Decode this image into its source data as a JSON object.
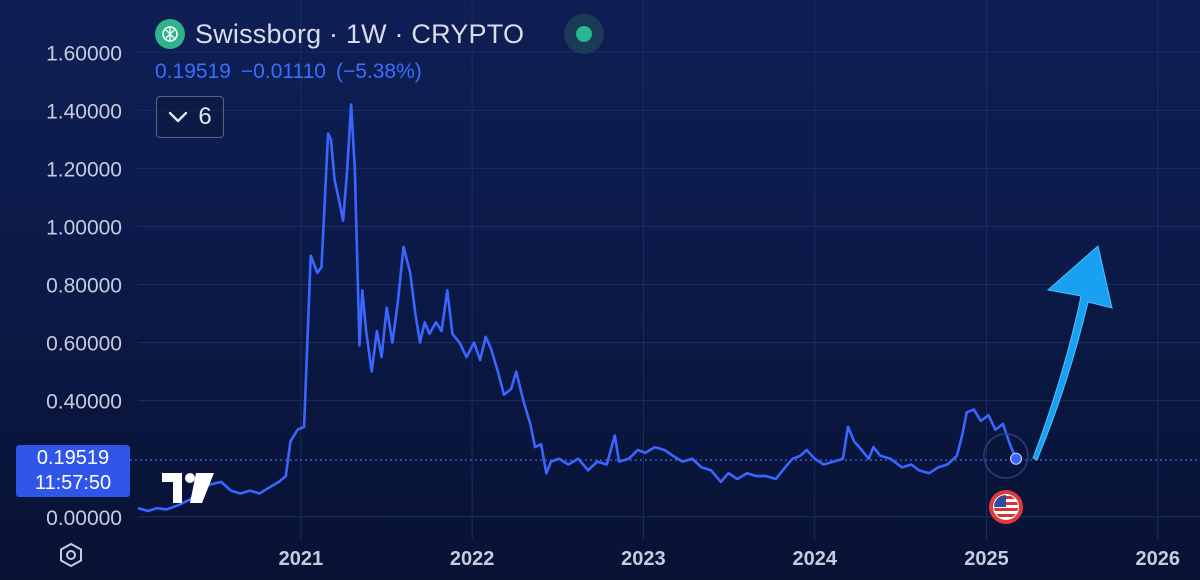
{
  "header": {
    "symbol": "Swissborg",
    "interval": "1W",
    "market": "CRYPTO",
    "title": "Swissborg · 1W · CRYPTO",
    "logo_icon": "swissborg-logo-icon",
    "status_icon": "market-status-dot-icon"
  },
  "quote": {
    "last": "0.19519",
    "change": "−0.01110",
    "change_pct": "(−5.38%)"
  },
  "indicators_button": {
    "label": "6",
    "icon": "chevron-down-icon"
  },
  "price_tag": {
    "price": "0.19519",
    "countdown": "11:57:50"
  },
  "colors": {
    "line": "#3a66ff",
    "accent": "#2f56e8",
    "arrow": "#1aa0f0",
    "logo": "#2fb38a"
  },
  "chart_data": {
    "type": "line",
    "y_ticks": [
      "1.60000",
      "1.40000",
      "1.20000",
      "1.00000",
      "0.80000",
      "0.60000",
      "0.40000",
      "0.00000"
    ],
    "y_tick_values": [
      1.6,
      1.4,
      1.2,
      1.0,
      0.8,
      0.6,
      0.4,
      0.0
    ],
    "x_ticks": [
      "2021",
      "2022",
      "2023",
      "2024",
      "2025",
      "2026"
    ],
    "xlim": [
      "2020-01-20",
      "2026-04-01"
    ],
    "ylim": [
      -0.08,
      1.78
    ],
    "grid": true,
    "series": [
      {
        "color": "#3a66ff",
        "points": [
          [
            "2020-01-20",
            0.03
          ],
          [
            "2020-02-10",
            0.02
          ],
          [
            "2020-03-01",
            0.03
          ],
          [
            "2020-03-20",
            0.025
          ],
          [
            "2020-04-15",
            0.04
          ],
          [
            "2020-05-10",
            0.06
          ],
          [
            "2020-06-01",
            0.09
          ],
          [
            "2020-06-20",
            0.11
          ],
          [
            "2020-07-15",
            0.12
          ],
          [
            "2020-08-05",
            0.09
          ],
          [
            "2020-08-25",
            0.08
          ],
          [
            "2020-09-15",
            0.09
          ],
          [
            "2020-10-05",
            0.08
          ],
          [
            "2020-10-25",
            0.1
          ],
          [
            "2020-11-15",
            0.12
          ],
          [
            "2020-11-30",
            0.14
          ],
          [
            "2020-12-10",
            0.26
          ],
          [
            "2020-12-25",
            0.3
          ],
          [
            "2021-01-08",
            0.31
          ],
          [
            "2021-01-22",
            0.9
          ],
          [
            "2021-02-05",
            0.84
          ],
          [
            "2021-02-14",
            0.86
          ],
          [
            "2021-02-28",
            1.32
          ],
          [
            "2021-03-06",
            1.3
          ],
          [
            "2021-03-14",
            1.16
          ],
          [
            "2021-03-22",
            1.1
          ],
          [
            "2021-04-01",
            1.02
          ],
          [
            "2021-04-10",
            1.2
          ],
          [
            "2021-04-18",
            1.42
          ],
          [
            "2021-04-26",
            1.2
          ],
          [
            "2021-05-06",
            0.59
          ],
          [
            "2021-05-12",
            0.78
          ],
          [
            "2021-05-20",
            0.64
          ],
          [
            "2021-06-01",
            0.5
          ],
          [
            "2021-06-12",
            0.64
          ],
          [
            "2021-06-22",
            0.55
          ],
          [
            "2021-07-03",
            0.72
          ],
          [
            "2021-07-15",
            0.6
          ],
          [
            "2021-07-26",
            0.73
          ],
          [
            "2021-08-08",
            0.93
          ],
          [
            "2021-08-22",
            0.84
          ],
          [
            "2021-09-02",
            0.7
          ],
          [
            "2021-09-12",
            0.6
          ],
          [
            "2021-09-22",
            0.67
          ],
          [
            "2021-10-02",
            0.63
          ],
          [
            "2021-10-16",
            0.67
          ],
          [
            "2021-10-28",
            0.64
          ],
          [
            "2021-11-09",
            0.78
          ],
          [
            "2021-11-20",
            0.63
          ],
          [
            "2021-12-05",
            0.6
          ],
          [
            "2021-12-20",
            0.55
          ],
          [
            "2022-01-05",
            0.6
          ],
          [
            "2022-01-18",
            0.54
          ],
          [
            "2022-01-30",
            0.62
          ],
          [
            "2022-02-10",
            0.58
          ],
          [
            "2022-02-25",
            0.5
          ],
          [
            "2022-03-10",
            0.42
          ],
          [
            "2022-03-25",
            0.44
          ],
          [
            "2022-04-05",
            0.5
          ],
          [
            "2022-04-20",
            0.4
          ],
          [
            "2022-05-05",
            0.32
          ],
          [
            "2022-05-15",
            0.24
          ],
          [
            "2022-05-28",
            0.25
          ],
          [
            "2022-06-08",
            0.15
          ],
          [
            "2022-06-18",
            0.19
          ],
          [
            "2022-07-05",
            0.2
          ],
          [
            "2022-07-25",
            0.18
          ],
          [
            "2022-08-15",
            0.2
          ],
          [
            "2022-09-05",
            0.16
          ],
          [
            "2022-09-25",
            0.19
          ],
          [
            "2022-10-15",
            0.18
          ],
          [
            "2022-11-01",
            0.28
          ],
          [
            "2022-11-10",
            0.19
          ],
          [
            "2022-12-01",
            0.2
          ],
          [
            "2022-12-20",
            0.23
          ],
          [
            "2023-01-05",
            0.22
          ],
          [
            "2023-01-25",
            0.24
          ],
          [
            "2023-02-15",
            0.23
          ],
          [
            "2023-03-05",
            0.21
          ],
          [
            "2023-03-25",
            0.19
          ],
          [
            "2023-04-15",
            0.2
          ],
          [
            "2023-05-05",
            0.17
          ],
          [
            "2023-05-25",
            0.16
          ],
          [
            "2023-06-15",
            0.12
          ],
          [
            "2023-07-01",
            0.15
          ],
          [
            "2023-07-20",
            0.13
          ],
          [
            "2023-08-10",
            0.15
          ],
          [
            "2023-08-30",
            0.14
          ],
          [
            "2023-09-20",
            0.14
          ],
          [
            "2023-10-10",
            0.13
          ],
          [
            "2023-10-30",
            0.17
          ],
          [
            "2023-11-15",
            0.2
          ],
          [
            "2023-12-01",
            0.21
          ],
          [
            "2023-12-15",
            0.23
          ],
          [
            "2024-01-01",
            0.2
          ],
          [
            "2024-01-20",
            0.18
          ],
          [
            "2024-02-10",
            0.19
          ],
          [
            "2024-03-01",
            0.2
          ],
          [
            "2024-03-12",
            0.31
          ],
          [
            "2024-03-25",
            0.26
          ],
          [
            "2024-04-10",
            0.23
          ],
          [
            "2024-04-25",
            0.2
          ],
          [
            "2024-05-05",
            0.24
          ],
          [
            "2024-05-20",
            0.21
          ],
          [
            "2024-06-10",
            0.2
          ],
          [
            "2024-07-05",
            0.17
          ],
          [
            "2024-07-25",
            0.18
          ],
          [
            "2024-08-10",
            0.16
          ],
          [
            "2024-09-01",
            0.15
          ],
          [
            "2024-09-20",
            0.17
          ],
          [
            "2024-10-10",
            0.18
          ],
          [
            "2024-10-30",
            0.21
          ],
          [
            "2024-11-10",
            0.28
          ],
          [
            "2024-11-20",
            0.36
          ],
          [
            "2024-12-05",
            0.37
          ],
          [
            "2024-12-20",
            0.33
          ],
          [
            "2025-01-05",
            0.35
          ],
          [
            "2025-01-20",
            0.3
          ],
          [
            "2025-02-05",
            0.32
          ],
          [
            "2025-02-20",
            0.25
          ],
          [
            "2025-03-05",
            0.2
          ]
        ]
      }
    ],
    "last_value": 0.19519
  },
  "settings_icon": "chart-settings-icon",
  "tv_logo_icon": "tradingview-logo-icon",
  "flag_icon": "us-flag-event-icon",
  "arrow_icon": "up-arrow-annotation-icon"
}
